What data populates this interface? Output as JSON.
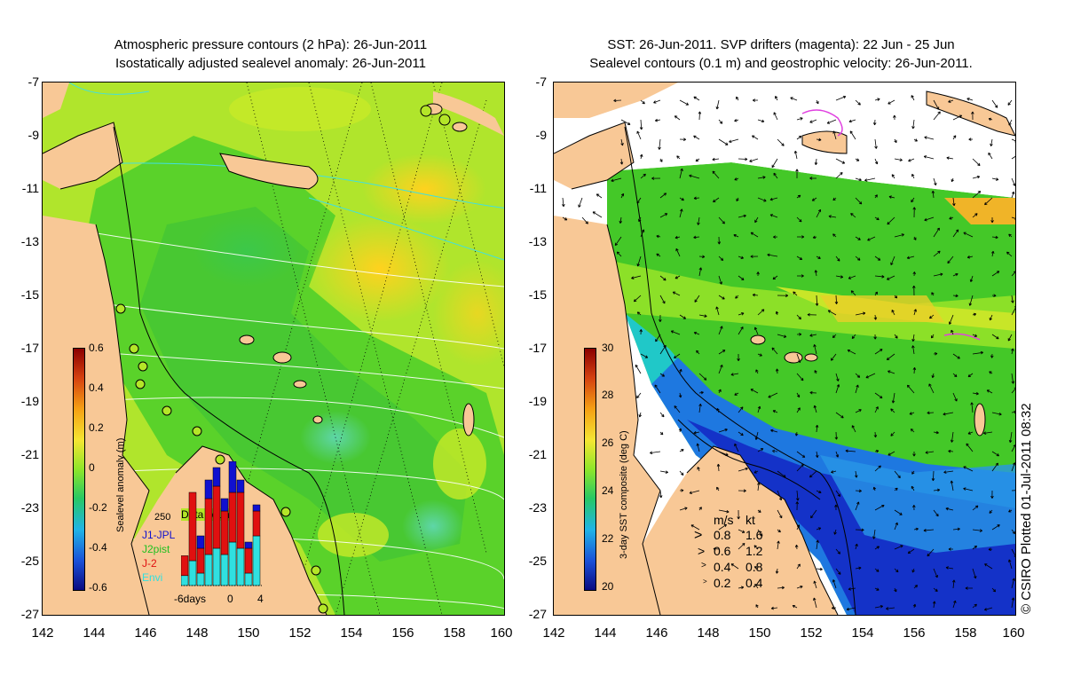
{
  "left_panel": {
    "title_line1": "Atmospheric pressure contours (2 hPa): 26-Jun-2011",
    "title_line2": "Isostatically adjusted sealevel anomaly: 26-Jun-2011",
    "colorbar": {
      "label": "Sealevel anomaly (m)",
      "ticks": [
        "0.6",
        "0.4",
        "0.2",
        "0",
        "-0.2",
        "-0.4",
        "-0.6"
      ]
    },
    "inset": {
      "count_label": "250",
      "title": "Data count",
      "legend": [
        {
          "name": "J1-JPL",
          "color": "#1010d0"
        },
        {
          "name": "J2pist",
          "color": "#20c020"
        },
        {
          "name": "J-2",
          "color": "#e01010"
        },
        {
          "name": "Envi",
          "color": "#30e0e0"
        }
      ],
      "x_labels": [
        "-6days",
        "0",
        "4"
      ],
      "bars": [
        {
          "cyan": 0.08,
          "red": 0.16,
          "blue": 0
        },
        {
          "cyan": 0.2,
          "red": 0.55,
          "blue": 0
        },
        {
          "cyan": 0.1,
          "red": 0.2,
          "blue": 0.1
        },
        {
          "cyan": 0.25,
          "red": 0.45,
          "blue": 0.15
        },
        {
          "cyan": 0.3,
          "red": 0.5,
          "blue": 0.15
        },
        {
          "cyan": 0.25,
          "red": 0.35,
          "blue": 0.1
        },
        {
          "cyan": 0.35,
          "red": 0.4,
          "blue": 0.25
        },
        {
          "cyan": 0.3,
          "red": 0.45,
          "blue": 0.1
        },
        {
          "cyan": 0.1,
          "red": 0.2,
          "blue": 0.05
        },
        {
          "cyan": 0.4,
          "red": 0.2,
          "blue": 0.05
        }
      ]
    }
  },
  "right_panel": {
    "title_line1": "SST: 26-Jun-2011. SVP drifters (magenta): 22 Jun - 25 Jun",
    "title_line2": "Sealevel contours (0.1 m) and geostrophic velocity: 26-Jun-2011.",
    "colorbar": {
      "label": "3-day SST composite (deg C)",
      "ticks": [
        "30",
        "28",
        "26",
        "24",
        "22",
        "20"
      ]
    },
    "velocity_legend": {
      "header_ms": "m/s",
      "header_kt": "kt",
      "rows": [
        {
          "ms": "0.8",
          "kt": "1.6"
        },
        {
          "ms": "0.6",
          "kt": "1.2"
        },
        {
          "ms": "0.4",
          "kt": "0.8"
        },
        {
          "ms": "0.2",
          "kt": "0.4"
        }
      ]
    }
  },
  "axes": {
    "lat_ticks": [
      "-7",
      "-9",
      "-11",
      "-13",
      "-15",
      "-17",
      "-19",
      "-21",
      "-23",
      "-25",
      "-27"
    ],
    "lon_ticks": [
      "142",
      "144",
      "146",
      "148",
      "150",
      "152",
      "154",
      "156",
      "158",
      "160"
    ]
  },
  "credit": "© CSIRO Plotted 01-Jul-2011 08:32",
  "colors": {
    "land": "#f8c896",
    "ocean_green": "#5ad22a",
    "ocean_yellow_green": "#b4e628",
    "ocean_yellow": "#ffd21e"
  }
}
